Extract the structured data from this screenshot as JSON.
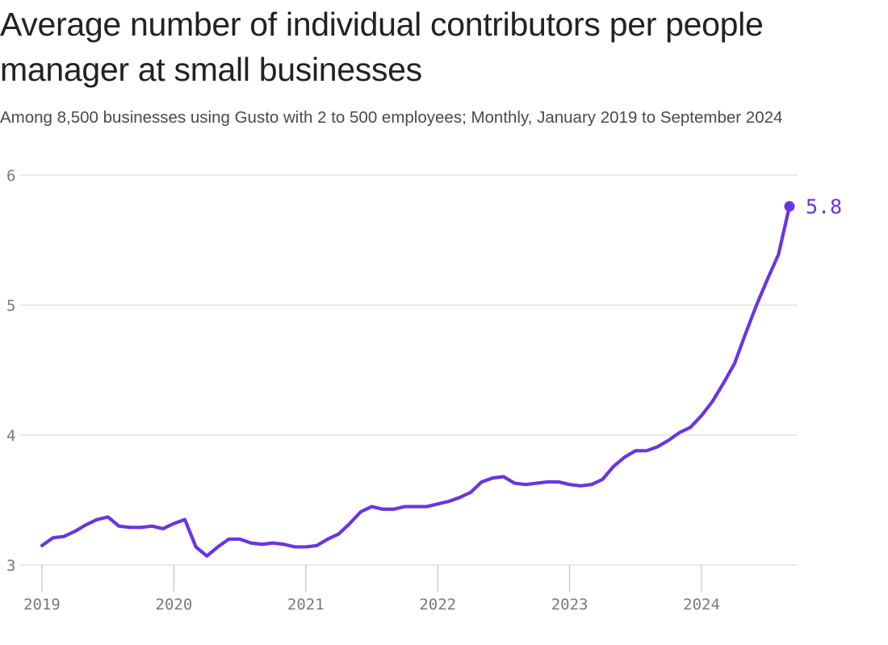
{
  "colors": {
    "line": "#6a35e0",
    "grid": "#d6d6d6",
    "axis": "#b9b9b9",
    "tick_text": "#7a7a7a",
    "title_text": "#222222",
    "subtitle_text": "#4a4a4a"
  },
  "chart_data": {
    "type": "line",
    "title": "Average number of individual contributors per people manager at small businesses",
    "subtitle": "Among 8,500 businesses using Gusto with 2 to 500 employees; Monthly, January 2019 to September 2024",
    "xlabel": "",
    "ylabel": "",
    "ylim": [
      3,
      6
    ],
    "xlim": [
      2019.0,
      2024.667
    ],
    "yticks": [
      3,
      4,
      5,
      6
    ],
    "ytick_labels": [
      "3",
      "4",
      "5",
      "6"
    ],
    "xticks": [
      2019,
      2020,
      2021,
      2022,
      2023,
      2024
    ],
    "xtick_labels": [
      "2019",
      "2020",
      "2021",
      "2022",
      "2023",
      "2024"
    ],
    "grid": "horizontal",
    "end_label": "5.8",
    "series": [
      {
        "name": "Individual contributors per people manager",
        "start": "2019-01",
        "frequency": "monthly",
        "values": [
          3.15,
          3.21,
          3.22,
          3.26,
          3.31,
          3.35,
          3.37,
          3.3,
          3.29,
          3.29,
          3.3,
          3.28,
          3.32,
          3.35,
          3.14,
          3.07,
          3.14,
          3.2,
          3.2,
          3.17,
          3.16,
          3.17,
          3.16,
          3.14,
          3.14,
          3.15,
          3.2,
          3.24,
          3.32,
          3.41,
          3.45,
          3.43,
          3.43,
          3.45,
          3.45,
          3.45,
          3.47,
          3.49,
          3.52,
          3.56,
          3.64,
          3.67,
          3.68,
          3.63,
          3.62,
          3.63,
          3.64,
          3.64,
          3.62,
          3.61,
          3.62,
          3.66,
          3.76,
          3.83,
          3.88,
          3.88,
          3.91,
          3.96,
          4.02,
          4.06,
          4.15,
          4.26,
          4.4,
          4.55,
          4.78,
          5.0,
          5.2,
          5.39,
          5.76
        ]
      }
    ]
  }
}
